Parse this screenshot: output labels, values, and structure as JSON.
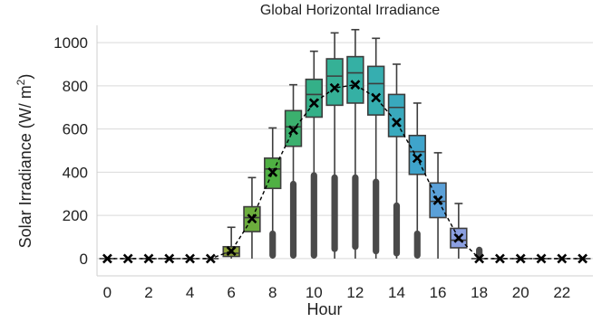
{
  "chart_data": {
    "type": "box",
    "title": "Global Horizontal Irradiance",
    "xlabel": "Hour",
    "ylabel": "Solar Irradiance (W/ m²)",
    "ylabel_parts": {
      "text": "Solar Irradiance (W/ m",
      "sup": "2",
      "close": ")"
    },
    "x_tick_labels": [
      "0",
      "2",
      "4",
      "6",
      "8",
      "10",
      "12",
      "14",
      "16",
      "18",
      "20",
      "22"
    ],
    "y_tick_labels": [
      "0",
      "200",
      "400",
      "600",
      "800",
      "1000"
    ],
    "ylim": [
      -80,
      1080
    ],
    "grid": "horizontal",
    "categories": [
      0,
      1,
      2,
      3,
      4,
      5,
      6,
      7,
      8,
      9,
      10,
      11,
      12,
      13,
      14,
      15,
      16,
      17,
      18,
      19,
      20,
      21,
      22,
      23
    ],
    "mean_line": "dashed black line with x markers through hourly means",
    "boxes": [
      {
        "hour": 0,
        "min": 0,
        "q1": 0,
        "median": 0,
        "q3": 0,
        "max": 0,
        "mean": 0,
        "color": "#7aa33a",
        "outliers": false
      },
      {
        "hour": 1,
        "min": 0,
        "q1": 0,
        "median": 0,
        "q3": 0,
        "max": 0,
        "mean": 0,
        "color": "#7aa33a",
        "outliers": false
      },
      {
        "hour": 2,
        "min": 0,
        "q1": 0,
        "median": 0,
        "q3": 0,
        "max": 0,
        "mean": 0,
        "color": "#7aa33a",
        "outliers": false
      },
      {
        "hour": 3,
        "min": 0,
        "q1": 0,
        "median": 0,
        "q3": 0,
        "max": 0,
        "mean": 0,
        "color": "#7aa33a",
        "outliers": false
      },
      {
        "hour": 4,
        "min": 0,
        "q1": 0,
        "median": 0,
        "q3": 0,
        "max": 0,
        "mean": 0,
        "color": "#7aa33a",
        "outliers": false
      },
      {
        "hour": 5,
        "min": 0,
        "q1": 0,
        "median": 0,
        "q3": 0,
        "max": 0,
        "mean": 0,
        "color": "#7aa33a",
        "outliers": false
      },
      {
        "hour": 6,
        "min": 0,
        "q1": 10,
        "median": 25,
        "q3": 55,
        "max": 145,
        "mean": 35,
        "color": "#8ea437",
        "outliers": false
      },
      {
        "hour": 7,
        "min": 0,
        "q1": 125,
        "median": 190,
        "q3": 240,
        "max": 375,
        "mean": 185,
        "color": "#6cad3d",
        "outliers": false
      },
      {
        "hour": 8,
        "min": 0,
        "q1": 325,
        "median": 415,
        "q3": 465,
        "max": 605,
        "mean": 400,
        "color": "#4fb043",
        "outliers": true,
        "outlier_range": [
          0,
          130
        ]
      },
      {
        "hour": 9,
        "min": 0,
        "q1": 520,
        "median": 610,
        "q3": 685,
        "max": 805,
        "mean": 595,
        "color": "#3bb06e",
        "outliers": true,
        "outlier_range": [
          0,
          360
        ]
      },
      {
        "hour": 10,
        "min": 0,
        "q1": 655,
        "median": 760,
        "q3": 830,
        "max": 960,
        "mean": 720,
        "color": "#34b088",
        "outliers": true,
        "outlier_range": [
          0,
          400
        ]
      },
      {
        "hour": 11,
        "min": 0,
        "q1": 710,
        "median": 845,
        "q3": 925,
        "max": 1045,
        "mean": 790,
        "color": "#35b196",
        "outliers": true,
        "outlier_range": [
          30,
          390
        ]
      },
      {
        "hour": 12,
        "min": 0,
        "q1": 720,
        "median": 860,
        "q3": 935,
        "max": 1060,
        "mean": 805,
        "color": "#35b0a4",
        "outliers": true,
        "outlier_range": [
          40,
          390
        ]
      },
      {
        "hour": 13,
        "min": 0,
        "q1": 665,
        "median": 810,
        "q3": 890,
        "max": 1020,
        "mean": 745,
        "color": "#36aeb0",
        "outliers": true,
        "outlier_range": [
          20,
          370
        ]
      },
      {
        "hour": 14,
        "min": 0,
        "q1": 565,
        "median": 700,
        "q3": 760,
        "max": 900,
        "mean": 630,
        "color": "#39a9bd",
        "outliers": true,
        "outlier_range": [
          10,
          260
        ]
      },
      {
        "hour": 15,
        "min": 0,
        "q1": 390,
        "median": 495,
        "q3": 570,
        "max": 720,
        "mean": 465,
        "color": "#3fa4cb",
        "outliers": true,
        "outlier_range": [
          0,
          130
        ]
      },
      {
        "hour": 16,
        "min": 0,
        "q1": 190,
        "median": 265,
        "q3": 350,
        "max": 490,
        "mean": 270,
        "color": "#5aa0d8",
        "outliers": false
      },
      {
        "hour": 17,
        "min": 0,
        "q1": 50,
        "median": 85,
        "q3": 140,
        "max": 255,
        "mean": 95,
        "color": "#8b9fe0",
        "outliers": false
      },
      {
        "hour": 18,
        "min": 0,
        "q1": 0,
        "median": 0,
        "q3": 0,
        "max": 0,
        "mean": 0,
        "color": "#a89ce0",
        "outliers": true,
        "outlier_range": [
          0,
          55
        ]
      },
      {
        "hour": 19,
        "min": 0,
        "q1": 0,
        "median": 0,
        "q3": 0,
        "max": 0,
        "mean": 0,
        "color": "#b49be0",
        "outliers": false
      },
      {
        "hour": 20,
        "min": 0,
        "q1": 0,
        "median": 0,
        "q3": 0,
        "max": 0,
        "mean": 0,
        "color": "#b49be0",
        "outliers": false
      },
      {
        "hour": 21,
        "min": 0,
        "q1": 0,
        "median": 0,
        "q3": 0,
        "max": 0,
        "mean": 0,
        "color": "#b49be0",
        "outliers": false
      },
      {
        "hour": 22,
        "min": 0,
        "q1": 0,
        "median": 0,
        "q3": 0,
        "max": 0,
        "mean": 0,
        "color": "#b49be0",
        "outliers": false
      },
      {
        "hour": 23,
        "min": 0,
        "q1": 0,
        "median": 0,
        "q3": 0,
        "max": 0,
        "mean": 0,
        "color": "#b49be0",
        "outliers": false
      }
    ],
    "colors": {
      "grid": "#d9d9d9",
      "axis": "#cfcfcf",
      "box_edge": "#3d3d3d",
      "outlier": "#4a4a4a",
      "mean_marker": "#000000"
    }
  }
}
